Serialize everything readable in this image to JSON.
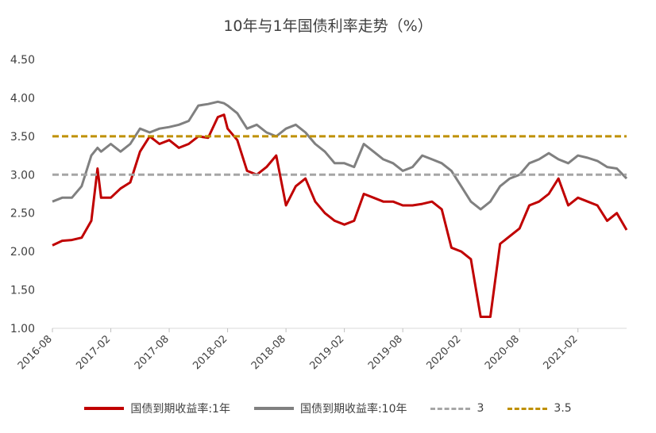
{
  "chart_data": {
    "type": "line",
    "title": "10年与1年国债利率走势（%）",
    "xlabel": "",
    "ylabel": "",
    "ylim": [
      1.0,
      4.5
    ],
    "y_ticks": [
      "1.00",
      "1.50",
      "2.00",
      "2.50",
      "3.00",
      "3.50",
      "4.00",
      "4.50"
    ],
    "x_range": [
      "2016-08",
      "2021-07"
    ],
    "x_ticks": [
      "2016-08",
      "2017-02",
      "2017-08",
      "2018-02",
      "2018-08",
      "2019-02",
      "2019-08",
      "2020-02",
      "2020-08",
      "2021-02"
    ],
    "grid": false,
    "legend_position": "bottom",
    "series": [
      {
        "name": "国债到期收益率:1年",
        "color": "#C00000",
        "style": "solid",
        "points": [
          [
            "2016-08",
            2.08
          ],
          [
            "2016-09",
            2.14
          ],
          [
            "2016-10",
            2.15
          ],
          [
            "2016-11",
            2.18
          ],
          [
            "2016-12",
            2.4
          ],
          [
            "2016-12-20",
            3.08
          ],
          [
            "2017-01",
            2.7
          ],
          [
            "2017-02",
            2.7
          ],
          [
            "2017-03",
            2.82
          ],
          [
            "2017-04",
            2.9
          ],
          [
            "2017-05",
            3.3
          ],
          [
            "2017-06",
            3.5
          ],
          [
            "2017-07",
            3.4
          ],
          [
            "2017-08",
            3.45
          ],
          [
            "2017-09",
            3.35
          ],
          [
            "2017-10",
            3.4
          ],
          [
            "2017-11",
            3.5
          ],
          [
            "2017-12",
            3.48
          ],
          [
            "2018-01",
            3.75
          ],
          [
            "2018-01-20",
            3.78
          ],
          [
            "2018-02",
            3.6
          ],
          [
            "2018-03",
            3.45
          ],
          [
            "2018-04",
            3.05
          ],
          [
            "2018-05",
            3.0
          ],
          [
            "2018-06",
            3.1
          ],
          [
            "2018-07",
            3.25
          ],
          [
            "2018-08",
            2.6
          ],
          [
            "2018-09",
            2.85
          ],
          [
            "2018-10",
            2.95
          ],
          [
            "2018-11",
            2.65
          ],
          [
            "2018-12",
            2.5
          ],
          [
            "2019-01",
            2.4
          ],
          [
            "2019-02",
            2.35
          ],
          [
            "2019-03",
            2.4
          ],
          [
            "2019-04",
            2.75
          ],
          [
            "2019-05",
            2.7
          ],
          [
            "2019-06",
            2.65
          ],
          [
            "2019-07",
            2.65
          ],
          [
            "2019-08",
            2.6
          ],
          [
            "2019-09",
            2.6
          ],
          [
            "2019-10",
            2.62
          ],
          [
            "2019-11",
            2.65
          ],
          [
            "2019-12",
            2.55
          ],
          [
            "2020-01",
            2.05
          ],
          [
            "2020-02",
            2.0
          ],
          [
            "2020-03",
            1.9
          ],
          [
            "2020-04",
            1.15
          ],
          [
            "2020-05",
            1.15
          ],
          [
            "2020-06",
            2.1
          ],
          [
            "2020-07",
            2.2
          ],
          [
            "2020-08",
            2.3
          ],
          [
            "2020-09",
            2.6
          ],
          [
            "2020-10",
            2.65
          ],
          [
            "2020-11",
            2.75
          ],
          [
            "2020-12",
            2.95
          ],
          [
            "2021-01",
            2.6
          ],
          [
            "2021-02",
            2.7
          ],
          [
            "2021-03",
            2.65
          ],
          [
            "2021-04",
            2.6
          ],
          [
            "2021-05",
            2.4
          ],
          [
            "2021-06",
            2.5
          ],
          [
            "2021-07",
            2.28
          ]
        ]
      },
      {
        "name": "国债到期收益率:10年",
        "color": "#808080",
        "style": "solid",
        "points": [
          [
            "2016-08",
            2.65
          ],
          [
            "2016-09",
            2.7
          ],
          [
            "2016-10",
            2.7
          ],
          [
            "2016-11",
            2.85
          ],
          [
            "2016-12",
            3.25
          ],
          [
            "2016-12-20",
            3.35
          ],
          [
            "2017-01",
            3.3
          ],
          [
            "2017-02",
            3.4
          ],
          [
            "2017-03",
            3.3
          ],
          [
            "2017-04",
            3.4
          ],
          [
            "2017-05",
            3.6
          ],
          [
            "2017-06",
            3.55
          ],
          [
            "2017-07",
            3.6
          ],
          [
            "2017-08",
            3.62
          ],
          [
            "2017-09",
            3.65
          ],
          [
            "2017-10",
            3.7
          ],
          [
            "2017-11",
            3.9
          ],
          [
            "2017-12",
            3.92
          ],
          [
            "2018-01",
            3.95
          ],
          [
            "2018-01-20",
            3.93
          ],
          [
            "2018-02",
            3.9
          ],
          [
            "2018-03",
            3.8
          ],
          [
            "2018-04",
            3.6
          ],
          [
            "2018-05",
            3.65
          ],
          [
            "2018-06",
            3.55
          ],
          [
            "2018-07",
            3.5
          ],
          [
            "2018-08",
            3.6
          ],
          [
            "2018-09",
            3.65
          ],
          [
            "2018-10",
            3.55
          ],
          [
            "2018-11",
            3.4
          ],
          [
            "2018-12",
            3.3
          ],
          [
            "2019-01",
            3.15
          ],
          [
            "2019-02",
            3.15
          ],
          [
            "2019-03",
            3.1
          ],
          [
            "2019-04",
            3.4
          ],
          [
            "2019-05",
            3.3
          ],
          [
            "2019-06",
            3.2
          ],
          [
            "2019-07",
            3.15
          ],
          [
            "2019-08",
            3.05
          ],
          [
            "2019-09",
            3.1
          ],
          [
            "2019-10",
            3.25
          ],
          [
            "2019-11",
            3.2
          ],
          [
            "2019-12",
            3.15
          ],
          [
            "2020-01",
            3.05
          ],
          [
            "2020-02",
            2.85
          ],
          [
            "2020-03",
            2.65
          ],
          [
            "2020-04",
            2.55
          ],
          [
            "2020-05",
            2.65
          ],
          [
            "2020-06",
            2.85
          ],
          [
            "2020-07",
            2.95
          ],
          [
            "2020-08",
            3.0
          ],
          [
            "2020-09",
            3.15
          ],
          [
            "2020-10",
            3.2
          ],
          [
            "2020-11",
            3.28
          ],
          [
            "2020-12",
            3.2
          ],
          [
            "2021-01",
            3.15
          ],
          [
            "2021-02",
            3.25
          ],
          [
            "2021-03",
            3.22
          ],
          [
            "2021-04",
            3.18
          ],
          [
            "2021-05",
            3.1
          ],
          [
            "2021-06",
            3.08
          ],
          [
            "2021-07",
            2.95
          ]
        ]
      },
      {
        "name": "3",
        "color": "#A6A6A6",
        "style": "dashed",
        "constant": 3.0
      },
      {
        "name": "3.5",
        "color": "#BF9000",
        "style": "dashed",
        "constant": 3.5
      }
    ]
  }
}
